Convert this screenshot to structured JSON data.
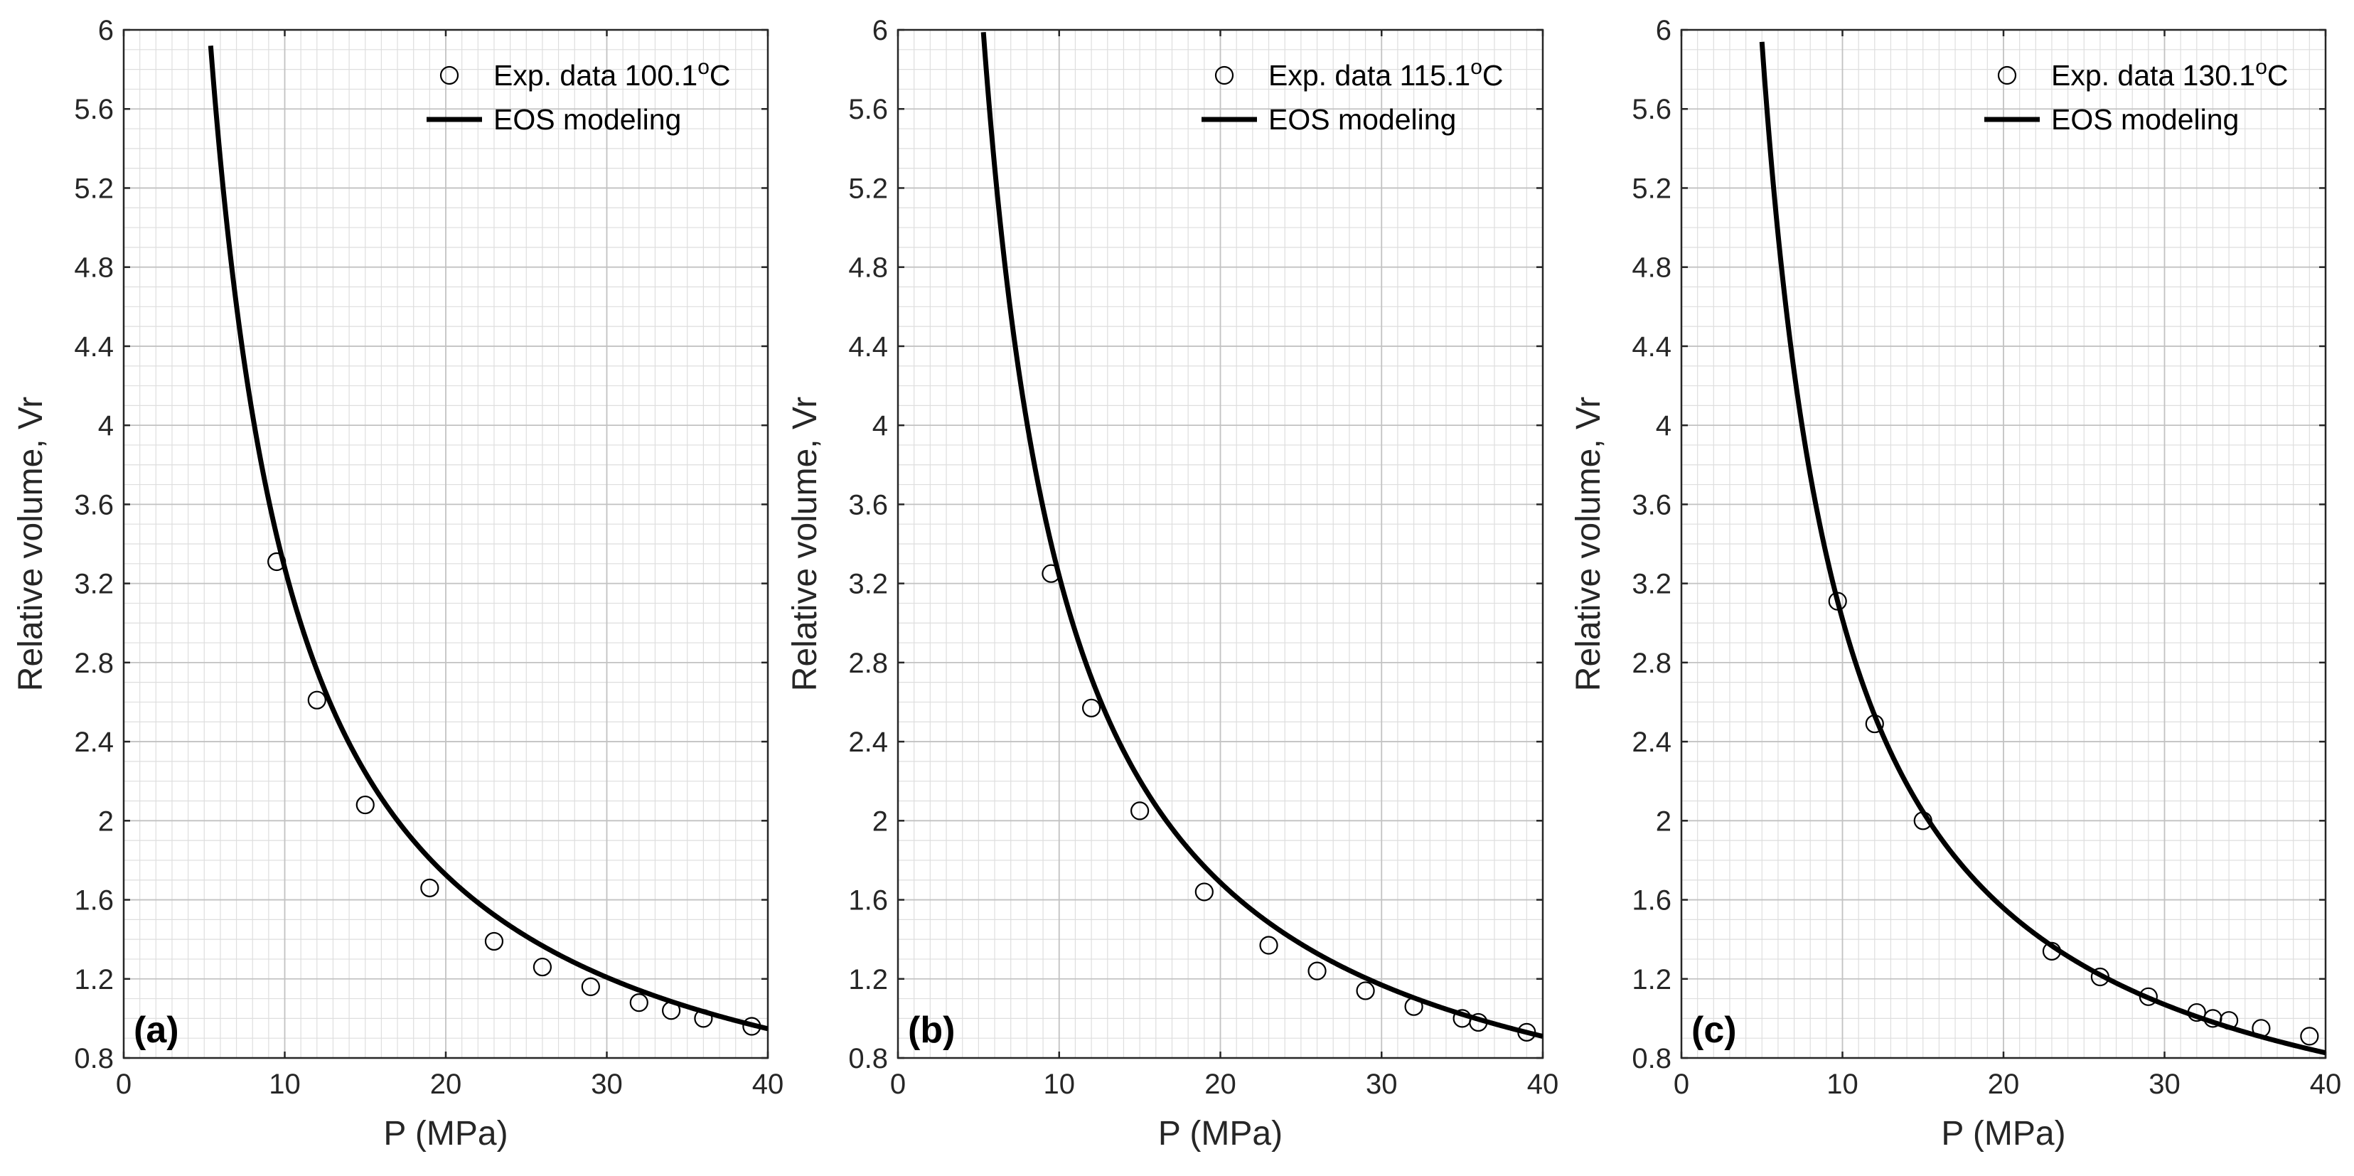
{
  "figure": {
    "colors": {
      "curve": "#000000",
      "marker_edge": "#000000",
      "minor_grid": "#dedede",
      "major_grid": "#c2c2c2",
      "axis": "#262626",
      "background": "#ffffff"
    }
  },
  "chart_data": [
    {
      "type": "scatter+line",
      "panel_label": "(a)",
      "xlabel": "P (MPa)",
      "ylabel": "Relative volume, Vr",
      "xlim": [
        0,
        40
      ],
      "ylim": [
        0.8,
        6
      ],
      "xticks": [
        0,
        10,
        20,
        30,
        40
      ],
      "yticks": [
        0.8,
        1.2,
        1.6,
        2,
        2.4,
        2.8,
        3.2,
        3.6,
        4,
        4.4,
        4.8,
        5.2,
        5.6,
        6
      ],
      "grid": true,
      "minor_grid": true,
      "legend_position": "top-right",
      "legend": {
        "exp_label": "Exp. data 100.1",
        "exp_unit_sup": "o",
        "exp_unit": "C",
        "model_label": "EOS modeling"
      },
      "series": [
        {
          "name": "Exp. data 100.1oC",
          "kind": "markers",
          "x": [
            9.5,
            12,
            15,
            19,
            23,
            26,
            29,
            32,
            34,
            36,
            39
          ],
          "y": [
            3.31,
            2.61,
            2.08,
            1.66,
            1.39,
            1.26,
            1.16,
            1.08,
            1.04,
            1.0,
            0.96
          ]
        },
        {
          "name": "EOS modeling",
          "kind": "curve",
          "model": {
            "a": 31.0,
            "b": 0.18,
            "c": 0.17
          },
          "x_start": 5.4,
          "x_end": 40
        }
      ]
    },
    {
      "type": "scatter+line",
      "panel_label": "(b)",
      "xlabel": "P (MPa)",
      "ylabel": "Relative volume, Vr",
      "xlim": [
        0,
        40
      ],
      "ylim": [
        0.8,
        6
      ],
      "xticks": [
        0,
        10,
        20,
        30,
        40
      ],
      "yticks": [
        0.8,
        1.2,
        1.6,
        2,
        2.4,
        2.8,
        3.2,
        3.6,
        4,
        4.4,
        4.8,
        5.2,
        5.6,
        6
      ],
      "grid": true,
      "minor_grid": true,
      "legend_position": "top-right",
      "legend": {
        "exp_label": "Exp. data 115.1",
        "exp_unit_sup": "o",
        "exp_unit": "C",
        "model_label": "EOS modeling"
      },
      "series": [
        {
          "name": "Exp. data 115.1oC",
          "kind": "markers",
          "x": [
            9.5,
            12,
            15,
            19,
            23,
            26,
            29,
            32,
            35,
            36,
            39
          ],
          "y": [
            3.25,
            2.57,
            2.05,
            1.64,
            1.37,
            1.24,
            1.14,
            1.06,
            1.0,
            0.98,
            0.93
          ]
        },
        {
          "name": "EOS modeling",
          "kind": "curve",
          "model": {
            "a": 31.0,
            "b": 0.14,
            "c": 0.18
          },
          "x_start": 5.3,
          "x_end": 40
        }
      ]
    },
    {
      "type": "scatter+line",
      "panel_label": "(c)",
      "xlabel": "P (MPa)",
      "ylabel": "Relative volume, Vr",
      "xlim": [
        0,
        40
      ],
      "ylim": [
        0.8,
        6
      ],
      "xticks": [
        0,
        10,
        20,
        30,
        40
      ],
      "yticks": [
        0.8,
        1.2,
        1.6,
        2,
        2.4,
        2.8,
        3.2,
        3.6,
        4,
        4.4,
        4.8,
        5.2,
        5.6,
        6
      ],
      "grid": true,
      "minor_grid": true,
      "legend_position": "top-right",
      "legend": {
        "exp_label": "Exp. data 130.1",
        "exp_unit_sup": "o",
        "exp_unit": "C",
        "model_label": "EOS modeling"
      },
      "series": [
        {
          "name": "Exp. data 130.1oC",
          "kind": "markers",
          "x": [
            9.7,
            12,
            15,
            23,
            26,
            29,
            32,
            33,
            34,
            36,
            39
          ],
          "y": [
            3.11,
            2.49,
            2.0,
            1.34,
            1.21,
            1.11,
            1.03,
            1.0,
            0.99,
            0.95,
            0.91
          ]
        },
        {
          "name": "EOS modeling",
          "kind": "curve",
          "model": {
            "a": 29.2,
            "b": 0.1,
            "c": 0.18
          },
          "x_start": 5.0,
          "x_end": 40
        }
      ]
    }
  ]
}
